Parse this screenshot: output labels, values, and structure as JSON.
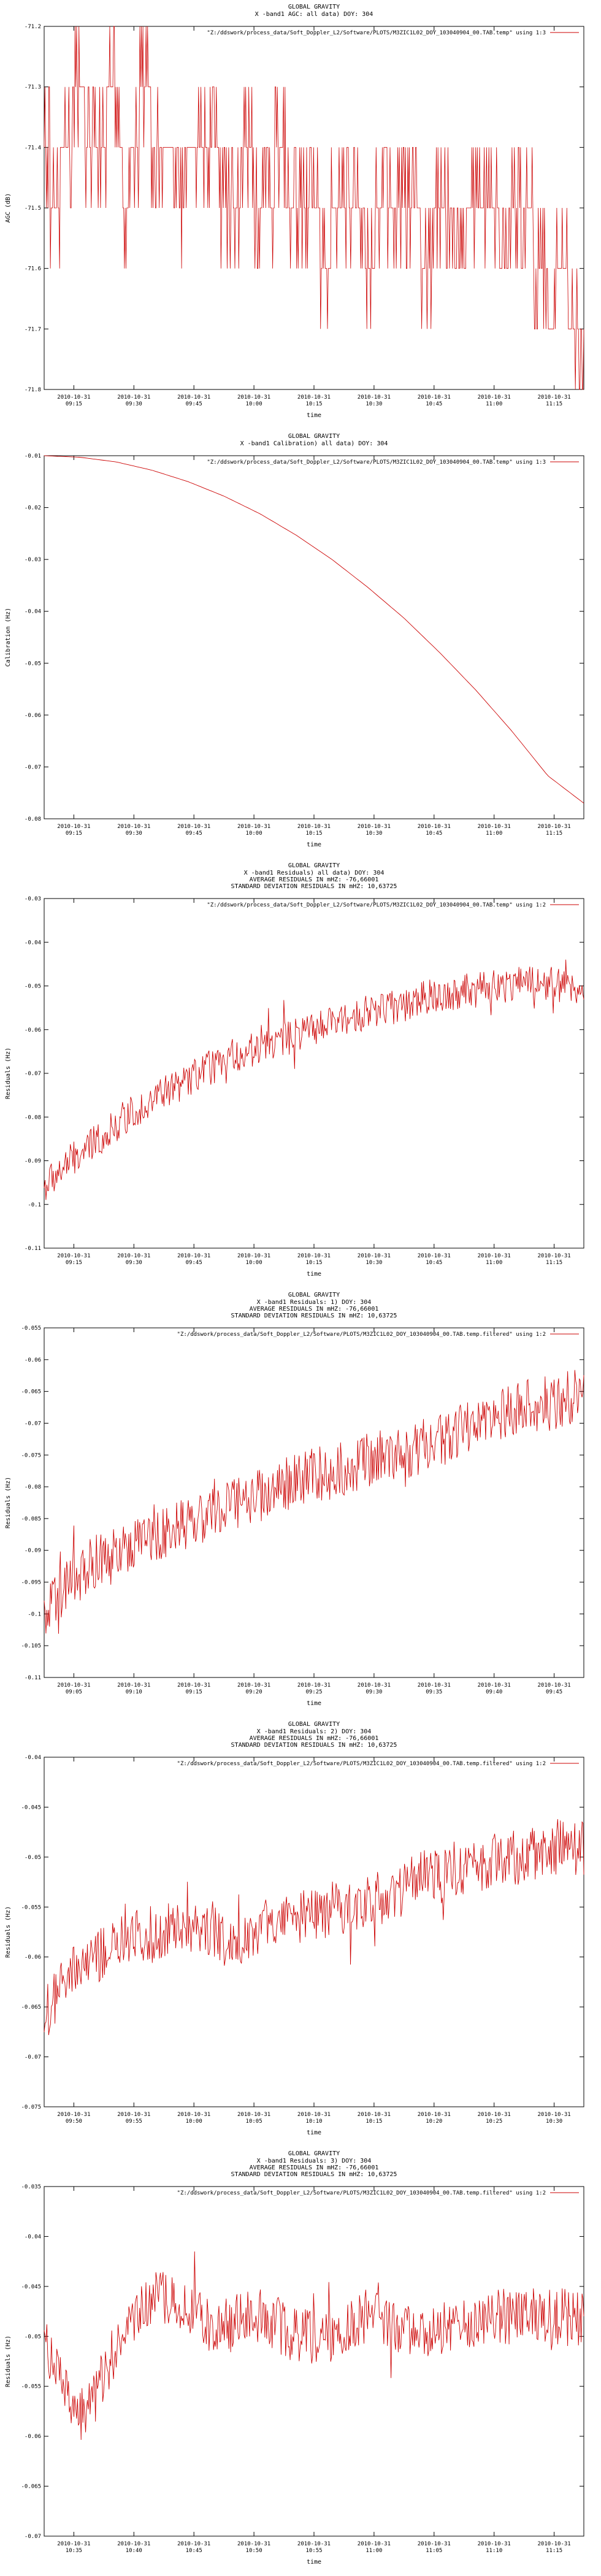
{
  "colors": {
    "series": "#cc0000",
    "axis": "#000000",
    "background": "#ffffff"
  },
  "chart_data": [
    {
      "type": "line",
      "title": "GLOBAL GRAVITY",
      "subtitle": [
        "X -band1 AGC: all data) DOY: 304"
      ],
      "xlabel": "time",
      "ylabel": "AGC (dB)",
      "ylim": [
        -71.8,
        -71.2
      ],
      "yticks": [
        "-71.2",
        "-71.3",
        "-71.4",
        "-71.5",
        "-71.6",
        "-71.7",
        "-71.8"
      ],
      "xtick_labels": [
        [
          "2010-10-31",
          "09:15"
        ],
        [
          "2010-10-31",
          "09:30"
        ],
        [
          "2010-10-31",
          "09:45"
        ],
        [
          "2010-10-31",
          "10:00"
        ],
        [
          "2010-10-31",
          "10:15"
        ],
        [
          "2010-10-31",
          "10:30"
        ],
        [
          "2010-10-31",
          "10:45"
        ],
        [
          "2010-10-31",
          "11:00"
        ],
        [
          "2010-10-31",
          "11:15"
        ]
      ],
      "legend_entry": "\"Z:/ddswork/process_data/Soft_Doppler_L2/Software/PLOTS/M3ZIC1L02_DOY_103040904_00.TAB.temp\" using 1:3",
      "legend_position": "top-right",
      "grid": false,
      "series": [
        {
          "values": [
            -71.4,
            -71.5,
            -71.4,
            -71.3,
            -71.4,
            -71.4,
            -71.3,
            -71.5,
            -71.4,
            -71.3,
            -71.4,
            -71.4,
            -71.5,
            -71.4,
            -71.4,
            -71.4,
            -71.5,
            -71.5,
            -71.4,
            -71.5,
            -71.5,
            -71.4,
            -71.5,
            -71.5,
            -71.5,
            -71.6,
            -71.5,
            -71.5,
            -71.5,
            -71.6,
            -71.5,
            -71.5,
            -71.5,
            -71.5,
            -71.6,
            -71.5,
            -71.5,
            -71.6,
            -71.5,
            -71.5,
            -71.5,
            -71.6,
            -71.5,
            -71.5,
            -71.6,
            -71.7,
            -71.6,
            -71.7,
            -71.8
          ]
        }
      ]
    },
    {
      "type": "line",
      "title": "GLOBAL GRAVITY",
      "subtitle": [
        "X -band1 Calibration) all data) DOY: 304"
      ],
      "xlabel": "time",
      "ylabel": "Calibration (Hz)",
      "ylim": [
        -0.08,
        -0.01
      ],
      "yticks": [
        "-0.01",
        "-0.02",
        "-0.03",
        "-0.04",
        "-0.05",
        "-0.06",
        "-0.07",
        "-0.08"
      ],
      "xtick_labels": [
        [
          "2010-10-31",
          "09:15"
        ],
        [
          "2010-10-31",
          "09:30"
        ],
        [
          "2010-10-31",
          "09:45"
        ],
        [
          "2010-10-31",
          "10:00"
        ],
        [
          "2010-10-31",
          "10:15"
        ],
        [
          "2010-10-31",
          "10:30"
        ],
        [
          "2010-10-31",
          "10:45"
        ],
        [
          "2010-10-31",
          "11:00"
        ],
        [
          "2010-10-31",
          "11:15"
        ]
      ],
      "legend_entry": "\"Z:/ddswork/process_data/Soft_Doppler_L2/Software/PLOTS/M3ZIC1L02_DOY_103040904_00.TAB.temp\" using 1:3",
      "legend_position": "top-right",
      "grid": false,
      "series": [
        {
          "values": [
            -0.01,
            -0.0103,
            -0.0112,
            -0.0128,
            -0.015,
            -0.0178,
            -0.0212,
            -0.0253,
            -0.03,
            -0.0354,
            -0.0413,
            -0.048,
            -0.0552,
            -0.0631,
            -0.0717,
            -0.077
          ]
        }
      ]
    },
    {
      "type": "line",
      "title": "GLOBAL GRAVITY",
      "subtitle": [
        "X -band1 Residuals) all data) DOY: 304",
        "AVERAGE RESIDUALS IN mHZ: -76,66001",
        "STANDARD DEVIATION RESIDUALS IN mHZ: 10,63725"
      ],
      "xlabel": "time",
      "ylabel": "Residuals (Hz)",
      "ylim": [
        -0.11,
        -0.03
      ],
      "yticks": [
        "-0.03",
        "-0.04",
        "-0.05",
        "-0.06",
        "-0.07",
        "-0.08",
        "-0.09",
        "-0.1",
        "-0.11"
      ],
      "xtick_labels": [
        [
          "2010-10-31",
          "09:15"
        ],
        [
          "2010-10-31",
          "09:30"
        ],
        [
          "2010-10-31",
          "09:45"
        ],
        [
          "2010-10-31",
          "10:00"
        ],
        [
          "2010-10-31",
          "10:15"
        ],
        [
          "2010-10-31",
          "10:30"
        ],
        [
          "2010-10-31",
          "10:45"
        ],
        [
          "2010-10-31",
          "11:00"
        ],
        [
          "2010-10-31",
          "11:15"
        ]
      ],
      "legend_entry": "\"Z:/ddswork/process_data/Soft_Doppler_L2/Software/PLOTS/M3ZIC1L02_DOY_103040904_00.TAB.temp\" using 1:2",
      "legend_position": "top-right",
      "grid": false,
      "series": [
        {
          "values": [
            -0.096,
            -0.093,
            -0.09,
            -0.088,
            -0.085,
            -0.083,
            -0.08,
            -0.078,
            -0.076,
            -0.074,
            -0.073,
            -0.071,
            -0.069,
            -0.068,
            -0.066,
            -0.065,
            -0.064,
            -0.063,
            -0.062,
            -0.061,
            -0.06,
            -0.059,
            -0.058,
            -0.057,
            -0.056,
            -0.055,
            -0.055,
            -0.054,
            -0.053,
            -0.052,
            -0.052,
            -0.051,
            -0.051,
            -0.05,
            -0.05,
            -0.049,
            -0.049,
            -0.049,
            -0.05,
            -0.05,
            -0.05
          ]
        }
      ]
    },
    {
      "type": "line",
      "title": "GLOBAL GRAVITY",
      "subtitle": [
        "X -band1 Residuals: 1) DOY: 304",
        "AVERAGE RESIDUALS IN mHZ: -76,66001",
        "STANDARD DEVIATION RESIDUALS IN mHZ: 10,63725"
      ],
      "xlabel": "time",
      "ylabel": "Residuals (Hz)",
      "ylim": [
        -0.11,
        -0.055
      ],
      "yticks": [
        "-0.055",
        "-0.06",
        "-0.065",
        "-0.07",
        "-0.075",
        "-0.08",
        "-0.085",
        "-0.09",
        "-0.095",
        "-0.1",
        "-0.105",
        "-0.11"
      ],
      "xtick_labels": [
        [
          "2010-10-31",
          "09:05"
        ],
        [
          "2010-10-31",
          "09:10"
        ],
        [
          "2010-10-31",
          "09:15"
        ],
        [
          "2010-10-31",
          "09:20"
        ],
        [
          "2010-10-31",
          "09:25"
        ],
        [
          "2010-10-31",
          "09:30"
        ],
        [
          "2010-10-31",
          "09:35"
        ],
        [
          "2010-10-31",
          "09:40"
        ],
        [
          "2010-10-31",
          "09:45"
        ]
      ],
      "legend_entry": "\"Z:/ddswork/process_data/Soft_Doppler_L2/Software/PLOTS/M3ZIC1L02_DOY_103040904_00.TAB.temp.filtered\" using 1:2",
      "legend_position": "top-right",
      "grid": false,
      "series": [
        {
          "values": [
            -0.101,
            -0.097,
            -0.094,
            -0.092,
            -0.091,
            -0.089,
            -0.088,
            -0.087,
            -0.086,
            -0.085,
            -0.084,
            -0.083,
            -0.082,
            -0.081,
            -0.08,
            -0.079,
            -0.078,
            -0.078,
            -0.077,
            -0.076,
            -0.075,
            -0.075,
            -0.074,
            -0.073,
            -0.072,
            -0.071,
            -0.07,
            -0.069,
            -0.068,
            -0.067,
            -0.067,
            -0.066,
            -0.065
          ]
        }
      ]
    },
    {
      "type": "line",
      "title": "GLOBAL GRAVITY",
      "subtitle": [
        "X -band1 Residuals: 2) DOY: 304",
        "AVERAGE RESIDUALS IN mHZ: -76,66001",
        "STANDARD DEVIATION RESIDUALS IN mHZ: 10,63725"
      ],
      "xlabel": "time",
      "ylabel": "Residuals (Hz)",
      "ylim": [
        -0.075,
        -0.04
      ],
      "yticks": [
        "-0.04",
        "-0.045",
        "-0.05",
        "-0.055",
        "-0.06",
        "-0.065",
        "-0.07",
        "-0.075"
      ],
      "xtick_labels": [
        [
          "2010-10-31",
          "09:50"
        ],
        [
          "2010-10-31",
          "09:55"
        ],
        [
          "2010-10-31",
          "10:00"
        ],
        [
          "2010-10-31",
          "10:05"
        ],
        [
          "2010-10-31",
          "10:10"
        ],
        [
          "2010-10-31",
          "10:15"
        ],
        [
          "2010-10-31",
          "10:20"
        ],
        [
          "2010-10-31",
          "10:25"
        ],
        [
          "2010-10-31",
          "10:30"
        ]
      ],
      "legend_entry": "\"Z:/ddswork/process_data/Soft_Doppler_L2/Software/PLOTS/M3ZIC1L02_DOY_103040904_00.TAB.temp.filtered\" using 1:2",
      "legend_position": "top-right",
      "grid": false,
      "series": [
        {
          "values": [
            -0.066,
            -0.063,
            -0.061,
            -0.06,
            -0.059,
            -0.058,
            -0.058,
            -0.057,
            -0.057,
            -0.057,
            -0.058,
            -0.058,
            -0.057,
            -0.057,
            -0.056,
            -0.056,
            -0.055,
            -0.055,
            -0.054,
            -0.054,
            -0.053,
            -0.052,
            -0.052,
            -0.051,
            -0.051,
            -0.05,
            -0.05,
            -0.05,
            -0.049,
            -0.049,
            -0.049
          ]
        }
      ]
    },
    {
      "type": "line",
      "title": "GLOBAL GRAVITY",
      "subtitle": [
        "X -band1 Residuals: 3) DOY: 304",
        "AVERAGE RESIDUALS IN mHZ: -76,66001",
        "STANDARD DEVIATION RESIDUALS IN mHZ: 10,63725"
      ],
      "xlabel": "time",
      "ylabel": "Residuals (Hz)",
      "ylim": [
        -0.07,
        -0.035
      ],
      "yticks": [
        "-0.035",
        "-0.04",
        "-0.045",
        "-0.05",
        "-0.055",
        "-0.06",
        "-0.065",
        "-0.07"
      ],
      "xtick_labels": [
        [
          "2010-10-31",
          "10:35"
        ],
        [
          "2010-10-31",
          "10:40"
        ],
        [
          "2010-10-31",
          "10:45"
        ],
        [
          "2010-10-31",
          "10:50"
        ],
        [
          "2010-10-31",
          "10:55"
        ],
        [
          "2010-10-31",
          "11:00"
        ],
        [
          "2010-10-31",
          "11:05"
        ],
        [
          "2010-10-31",
          "11:10"
        ],
        [
          "2010-10-31",
          "11:15"
        ]
      ],
      "legend_entry": "\"Z:/ddswork/process_data/Soft_Doppler_L2/Software/PLOTS/M3ZIC1L02_DOY_103040904_00.TAB.temp.filtered\" using 1:2",
      "legend_position": "top-right",
      "grid": false,
      "series": [
        {
          "values": [
            -0.05,
            -0.055,
            -0.058,
            -0.056,
            -0.052,
            -0.049,
            -0.047,
            -0.046,
            -0.047,
            -0.048,
            -0.049,
            -0.049,
            -0.048,
            -0.048,
            -0.049,
            -0.05,
            -0.05,
            -0.05,
            -0.049,
            -0.048,
            -0.048,
            -0.049,
            -0.05,
            -0.05,
            -0.049,
            -0.049,
            -0.048,
            -0.048,
            -0.048,
            -0.048,
            -0.048,
            -0.048,
            -0.048
          ]
        }
      ]
    }
  ]
}
